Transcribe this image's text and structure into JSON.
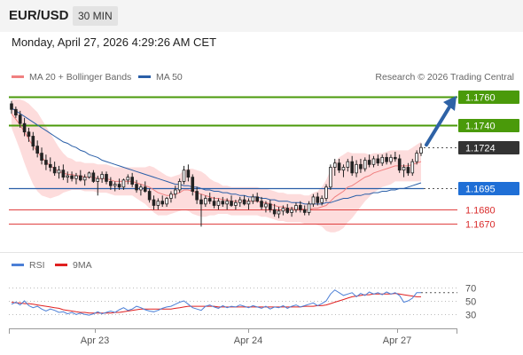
{
  "header": {
    "symbol": "EUR/USD",
    "timeframe": "30 MIN"
  },
  "datetime": "Monday, April 27, 2026 4:29:26 AM CET",
  "legend": {
    "ma20": "MA 20 + Bollinger Bands",
    "ma50": "MA 50",
    "source": "Research © 2026 Trading Central"
  },
  "rsi_legend": {
    "rsi": "RSI",
    "ma9": "9MA"
  },
  "colors": {
    "resistance": "#4a9a0a",
    "ma50": "#2a5fa8",
    "support": "#e04040",
    "bollinger": "#fdd6d6",
    "ma20": "#f08080",
    "current": "#333333",
    "rsi": "#4c7fd6",
    "rsi_ma": "#e02020",
    "arrow": "#2e62a6"
  },
  "chart_data": [
    {
      "type": "candlestick",
      "x": [
        "Apr 23",
        "Apr 24",
        "Apr 27"
      ],
      "ylim": [
        1.1655,
        1.1765
      ],
      "levels": [
        {
          "value": "1.1760",
          "kind": "resistance"
        },
        {
          "value": "1.1740",
          "kind": "resistance"
        },
        {
          "value": "1.1724",
          "kind": "current"
        },
        {
          "value": "1.1695",
          "kind": "ma50"
        },
        {
          "value": "1.1680",
          "kind": "support"
        },
        {
          "value": "1.1670",
          "kind": "support"
        }
      ],
      "candles": [
        [
          1.1755,
          1.1757,
          1.1748,
          1.1751
        ],
        [
          1.1751,
          1.1753,
          1.1745,
          1.1747
        ],
        [
          1.1747,
          1.175,
          1.1738,
          1.1741
        ],
        [
          1.1741,
          1.1745,
          1.1732,
          1.1735
        ],
        [
          1.1735,
          1.1738,
          1.1728,
          1.1732
        ],
        [
          1.1732,
          1.1735,
          1.1722,
          1.1725
        ],
        [
          1.1725,
          1.1729,
          1.1717,
          1.172
        ],
        [
          1.172,
          1.1724,
          1.1712,
          1.1715
        ],
        [
          1.1715,
          1.1719,
          1.1708,
          1.1712
        ],
        [
          1.1712,
          1.1717,
          1.1707,
          1.171
        ],
        [
          1.171,
          1.1714,
          1.1704,
          1.1706
        ],
        [
          1.1706,
          1.1711,
          1.1702,
          1.1708
        ],
        [
          1.1708,
          1.1712,
          1.1701,
          1.1703
        ],
        [
          1.1703,
          1.1707,
          1.1699,
          1.1704
        ],
        [
          1.1704,
          1.1707,
          1.17,
          1.1702
        ],
        [
          1.1702,
          1.1706,
          1.1698,
          1.1704
        ],
        [
          1.1704,
          1.1708,
          1.17,
          1.1701
        ],
        [
          1.1701,
          1.1705,
          1.1697,
          1.1703
        ],
        [
          1.1703,
          1.1707,
          1.1702,
          1.1706
        ],
        [
          1.1706,
          1.1708,
          1.1699,
          1.17
        ],
        [
          1.17,
          1.1704,
          1.169,
          1.1702
        ],
        [
          1.1702,
          1.1707,
          1.1699,
          1.1705
        ],
        [
          1.1705,
          1.1707,
          1.1698,
          1.17
        ],
        [
          1.17,
          1.1703,
          1.1694,
          1.1697
        ],
        [
          1.1697,
          1.17,
          1.1693,
          1.1698
        ],
        [
          1.1698,
          1.1702,
          1.1694,
          1.1696
        ],
        [
          1.1696,
          1.1702,
          1.1694,
          1.1701
        ],
        [
          1.1701,
          1.1705,
          1.1698,
          1.1703
        ],
        [
          1.1703,
          1.1706,
          1.1696,
          1.1698
        ],
        [
          1.1698,
          1.1701,
          1.1692,
          1.1694
        ],
        [
          1.1694,
          1.1698,
          1.169,
          1.1696
        ],
        [
          1.1696,
          1.17,
          1.1692,
          1.1693
        ],
        [
          1.1693,
          1.1695,
          1.1685,
          1.1687
        ],
        [
          1.1687,
          1.169,
          1.168,
          1.1683
        ],
        [
          1.1683,
          1.1688,
          1.168,
          1.1686
        ],
        [
          1.1686,
          1.169,
          1.1682,
          1.1684
        ],
        [
          1.1684,
          1.1689,
          1.1682,
          1.1688
        ],
        [
          1.1688,
          1.1693,
          1.1685,
          1.1691
        ],
        [
          1.1691,
          1.1697,
          1.1688,
          1.1694
        ],
        [
          1.1694,
          1.1702,
          1.1692,
          1.17
        ],
        [
          1.17,
          1.1711,
          1.1698,
          1.1708
        ],
        [
          1.1708,
          1.1712,
          1.17,
          1.1703
        ],
        [
          1.1703,
          1.1705,
          1.169,
          1.1693
        ],
        [
          1.1693,
          1.1696,
          1.1684,
          1.1687
        ],
        [
          1.1687,
          1.1691,
          1.1668,
          1.1684
        ],
        [
          1.1684,
          1.169,
          1.1682,
          1.1688
        ],
        [
          1.1688,
          1.1692,
          1.1684,
          1.1686
        ],
        [
          1.1686,
          1.1689,
          1.1681,
          1.1683
        ],
        [
          1.1683,
          1.1688,
          1.168,
          1.1686
        ],
        [
          1.1686,
          1.1689,
          1.1682,
          1.1684
        ],
        [
          1.1684,
          1.1688,
          1.168,
          1.1686
        ],
        [
          1.1686,
          1.169,
          1.1682,
          1.1683
        ],
        [
          1.1683,
          1.1687,
          1.168,
          1.1685
        ],
        [
          1.1685,
          1.1689,
          1.1682,
          1.1687
        ],
        [
          1.1687,
          1.169,
          1.1683,
          1.1684
        ],
        [
          1.1684,
          1.1688,
          1.168,
          1.1686
        ],
        [
          1.1686,
          1.1691,
          1.1684,
          1.1689
        ],
        [
          1.1689,
          1.1692,
          1.1685,
          1.1686
        ],
        [
          1.1686,
          1.1689,
          1.168,
          1.1682
        ],
        [
          1.1682,
          1.1686,
          1.1678,
          1.1684
        ],
        [
          1.1684,
          1.1687,
          1.1678,
          1.168
        ],
        [
          1.168,
          1.1684,
          1.1675,
          1.1677
        ],
        [
          1.1677,
          1.1682,
          1.1674,
          1.1679
        ],
        [
          1.1679,
          1.1683,
          1.1676,
          1.1681
        ],
        [
          1.1681,
          1.1684,
          1.1677,
          1.1678
        ],
        [
          1.1678,
          1.1682,
          1.1675,
          1.168
        ],
        [
          1.168,
          1.1685,
          1.1678,
          1.1683
        ],
        [
          1.1683,
          1.1686,
          1.1678,
          1.168
        ],
        [
          1.168,
          1.1683,
          1.1676,
          1.1678
        ],
        [
          1.1678,
          1.1686,
          1.1676,
          1.1684
        ],
        [
          1.1684,
          1.1691,
          1.1682,
          1.1689
        ],
        [
          1.1689,
          1.1692,
          1.1683,
          1.1685
        ],
        [
          1.1685,
          1.169,
          1.1683,
          1.1688
        ],
        [
          1.1688,
          1.1698,
          1.1686,
          1.1696
        ],
        [
          1.1696,
          1.1712,
          1.1694,
          1.171
        ],
        [
          1.171,
          1.1716,
          1.1704,
          1.1713
        ],
        [
          1.1713,
          1.1716,
          1.1706,
          1.1708
        ],
        [
          1.1708,
          1.1712,
          1.1703,
          1.171
        ],
        [
          1.171,
          1.1716,
          1.1707,
          1.1714
        ],
        [
          1.1714,
          1.1718,
          1.1704,
          1.1706
        ],
        [
          1.1706,
          1.1715,
          1.1703,
          1.1712
        ],
        [
          1.1712,
          1.1716,
          1.1706,
          1.1709
        ],
        [
          1.1709,
          1.1717,
          1.1707,
          1.1715
        ],
        [
          1.1715,
          1.1719,
          1.171,
          1.1712
        ],
        [
          1.1712,
          1.1718,
          1.171,
          1.1716
        ],
        [
          1.1716,
          1.1719,
          1.1711,
          1.1713
        ],
        [
          1.1713,
          1.1719,
          1.1711,
          1.1717
        ],
        [
          1.1717,
          1.172,
          1.1712,
          1.1714
        ],
        [
          1.1714,
          1.1719,
          1.1712,
          1.1717
        ],
        [
          1.1717,
          1.1721,
          1.1714,
          1.1716
        ],
        [
          1.1716,
          1.1719,
          1.1706,
          1.1708
        ],
        [
          1.1708,
          1.1712,
          1.1703,
          1.171
        ],
        [
          1.171,
          1.1713,
          1.1704,
          1.1706
        ],
        [
          1.1706,
          1.1716,
          1.1704,
          1.1714
        ],
        [
          1.1714,
          1.1722,
          1.1712,
          1.172
        ],
        [
          1.172,
          1.1727,
          1.1718,
          1.1724
        ]
      ],
      "ma20": [
        1.1748,
        1.1744,
        1.174,
        1.1735,
        1.173,
        1.1725,
        1.1721,
        1.1717,
        1.1714,
        1.1711,
        1.1709,
        1.1707,
        1.1706,
        1.1705,
        1.1705,
        1.1704,
        1.1704,
        1.1703,
        1.1703,
        1.1703,
        1.1702,
        1.1702,
        1.1702,
        1.1701,
        1.17,
        1.17,
        1.17,
        1.17,
        1.17,
        1.1699,
        1.1698,
        1.1697,
        1.1696,
        1.1694,
        1.1692,
        1.1691,
        1.169,
        1.169,
        1.1691,
        1.1692,
        1.1694,
        1.1694,
        1.1693,
        1.1692,
        1.1691,
        1.169,
        1.1689,
        1.1688,
        1.1688,
        1.1687,
        1.1687,
        1.1686,
        1.1686,
        1.1686,
        1.1686,
        1.1686,
        1.1686,
        1.1686,
        1.1685,
        1.1685,
        1.1684,
        1.1683,
        1.1682,
        1.1682,
        1.1681,
        1.1681,
        1.1681,
        1.1681,
        1.168,
        1.168,
        1.1681,
        1.1681,
        1.1682,
        1.1683,
        1.1686,
        1.1689,
        1.1691,
        1.1693,
        1.1696,
        1.1697,
        1.1699,
        1.1701,
        1.1703,
        1.1704,
        1.1706,
        1.1707,
        1.1708,
        1.1709,
        1.171,
        1.1711,
        1.1711,
        1.1711,
        1.1711,
        1.1712,
        1.1713,
        1.1714
      ],
      "ma50": [
        1.1752,
        1.175,
        1.1748,
        1.1746,
        1.1744,
        1.1742,
        1.174,
        1.1738,
        1.1736,
        1.1734,
        1.1732,
        1.173,
        1.1728,
        1.1727,
        1.1725,
        1.1724,
        1.1722,
        1.1721,
        1.1719,
        1.1718,
        1.1717,
        1.1715,
        1.1714,
        1.1713,
        1.1712,
        1.1711,
        1.171,
        1.1709,
        1.1708,
        1.1707,
        1.1706,
        1.1705,
        1.1704,
        1.1703,
        1.1702,
        1.1701,
        1.17,
        1.1699,
        1.1698,
        1.1698,
        1.1697,
        1.1697,
        1.1696,
        1.1696,
        1.1695,
        1.1694,
        1.1694,
        1.1693,
        1.1693,
        1.1692,
        1.1692,
        1.1691,
        1.1691,
        1.169,
        1.169,
        1.1689,
        1.1689,
        1.1689,
        1.1688,
        1.1688,
        1.1687,
        1.1687,
        1.1686,
        1.1686,
        1.1686,
        1.1685,
        1.1685,
        1.1685,
        1.1684,
        1.1684,
        1.1684,
        1.1684,
        1.1684,
        1.1685,
        1.1685,
        1.1686,
        1.1687,
        1.1688,
        1.1688,
        1.1689,
        1.169,
        1.169,
        1.1691,
        1.1691,
        1.1692,
        1.1692,
        1.1693,
        1.1693,
        1.1694,
        1.1694,
        1.1695,
        1.1695,
        1.1696,
        1.1697,
        1.1698,
        1.1699
      ],
      "bb_width": [
        0.001,
        0.0014,
        0.0018,
        0.0022,
        0.0025,
        0.0027,
        0.0028,
        0.0027,
        0.0025,
        0.0023,
        0.002,
        0.0017,
        0.0014,
        0.0012,
        0.0011,
        0.001,
        0.001,
        0.001,
        0.001,
        0.001,
        0.001,
        0.001,
        0.001,
        0.001,
        0.001,
        0.001,
        0.001,
        0.001,
        0.001,
        0.0011,
        0.0012,
        0.0013,
        0.0015,
        0.0016,
        0.0016,
        0.0015,
        0.0014,
        0.0013,
        0.0013,
        0.0013,
        0.0014,
        0.0015,
        0.0016,
        0.0016,
        0.0016,
        0.0015,
        0.0013,
        0.0012,
        0.0011,
        0.001,
        0.001,
        0.001,
        0.001,
        0.001,
        0.001,
        0.001,
        0.001,
        0.001,
        0.001,
        0.001,
        0.001,
        0.001,
        0.001,
        0.001,
        0.001,
        0.001,
        0.001,
        0.001,
        0.001,
        0.001,
        0.0011,
        0.0012,
        0.0014,
        0.0018,
        0.0022,
        0.0025,
        0.0026,
        0.0026,
        0.0025,
        0.0023,
        0.0021,
        0.0019,
        0.0017,
        0.0015,
        0.0014,
        0.0013,
        0.0012,
        0.0012,
        0.0012,
        0.0011,
        0.0011,
        0.0011,
        0.0011,
        0.0012,
        0.0013,
        0.0014
      ],
      "forecast_arrow": {
        "from": 1.1724,
        "to": 1.176
      }
    },
    {
      "type": "line",
      "name": "RSI",
      "yticks": [
        "70",
        "50",
        "30"
      ],
      "ylim": [
        20,
        80
      ],
      "series": [
        {
          "name": "RSI",
          "values": [
            45,
            48,
            44,
            50,
            43,
            40,
            42,
            38,
            35,
            38,
            36,
            33,
            34,
            31,
            33,
            30,
            32,
            30,
            29,
            31,
            34,
            31,
            33,
            35,
            33,
            37,
            40,
            36,
            38,
            42,
            40,
            37,
            35,
            34,
            36,
            39,
            41,
            42,
            45,
            48,
            50,
            45,
            40,
            38,
            36,
            42,
            44,
            41,
            39,
            43,
            40,
            42,
            41,
            44,
            42,
            40,
            43,
            41,
            39,
            42,
            38,
            41,
            40,
            43,
            39,
            42,
            44,
            41,
            43,
            45,
            47,
            43,
            46,
            50,
            60,
            66,
            62,
            58,
            60,
            62,
            56,
            61,
            58,
            63,
            60,
            62,
            59,
            63,
            60,
            62,
            58,
            48,
            50,
            54,
            62,
            62
          ]
        },
        {
          "name": "9MA",
          "values": [
            48,
            47,
            47,
            46,
            46,
            45,
            44,
            43,
            42,
            41,
            40,
            39,
            37,
            36,
            35,
            34,
            33,
            33,
            32,
            32,
            32,
            32,
            32,
            32,
            33,
            33,
            34,
            35,
            36,
            37,
            38,
            38,
            38,
            38,
            38,
            38,
            38,
            38,
            39,
            40,
            41,
            42,
            42,
            42,
            42,
            42,
            42,
            42,
            41,
            41,
            41,
            41,
            41,
            41,
            41,
            41,
            41,
            41,
            41,
            41,
            41,
            41,
            41,
            41,
            41,
            41,
            41,
            41,
            42,
            42,
            42,
            43,
            43,
            44,
            46,
            48,
            50,
            52,
            54,
            56,
            57,
            58,
            59,
            59,
            60,
            60,
            60,
            60,
            60,
            61,
            60,
            59,
            58,
            57,
            56,
            56
          ]
        }
      ]
    }
  ]
}
